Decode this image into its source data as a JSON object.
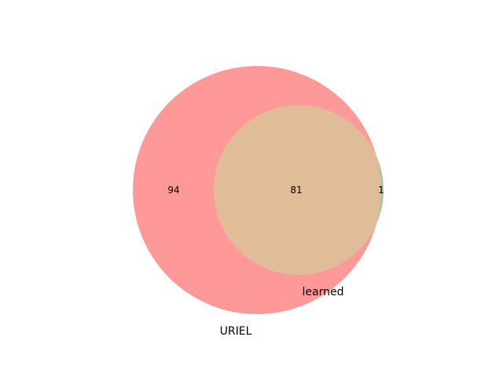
{
  "chart_data": {
    "type": "venn",
    "sets": [
      {
        "name": "URIEL",
        "color": "#ff9999"
      },
      {
        "name": "learned",
        "color": "#99cc99"
      }
    ],
    "regions": {
      "uriel_only": 94,
      "overlap": 81,
      "learned_only": 1
    },
    "overlap_color": "#e0bd98"
  }
}
